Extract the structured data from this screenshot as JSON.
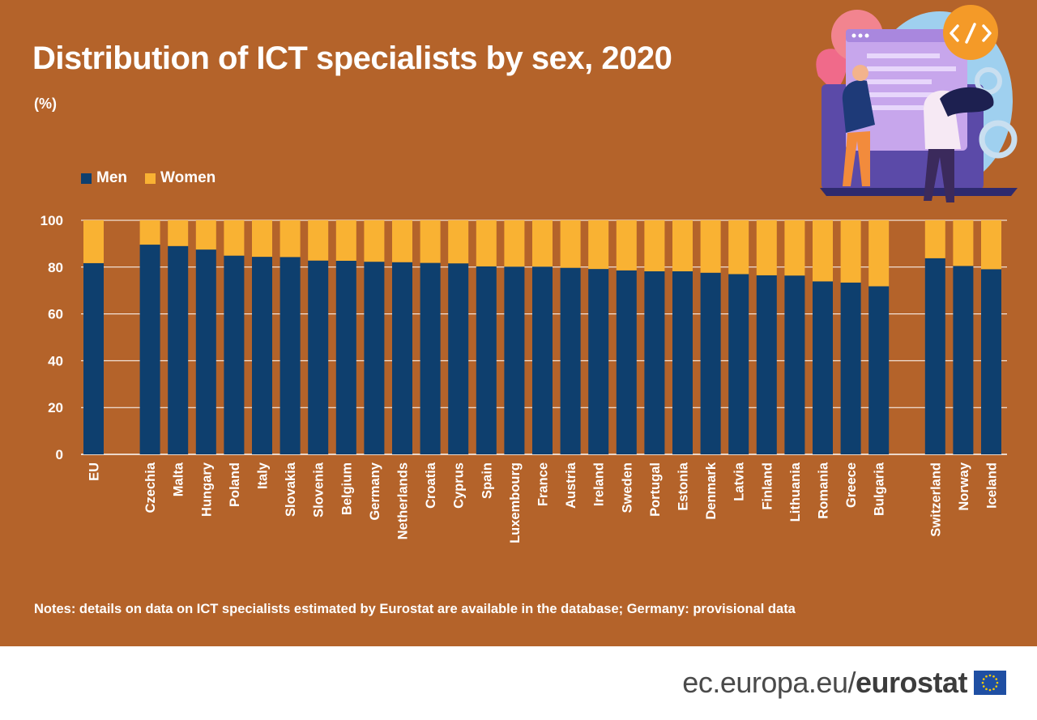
{
  "header": {
    "title": "Distribution of ICT specialists by sex, 2020",
    "subtitle": "(%)"
  },
  "legend": {
    "items": [
      {
        "label": "Men",
        "color": "#0e3f6e"
      },
      {
        "label": "Women",
        "color": "#f9b233"
      }
    ]
  },
  "notes": "Notes: details on data on ICT specialists estimated by Eurostat are available in the database; Germany: provisional data",
  "footer": {
    "url_prefix": "ec.europa.eu/",
    "brand": "eurostat"
  },
  "chart_data": {
    "type": "bar",
    "stacked": true,
    "categories": [
      "EU",
      "Czechia",
      "Malta",
      "Hungary",
      "Poland",
      "Italy",
      "Slovakia",
      "Slovenia",
      "Belgium",
      "Germany",
      "Netherlands",
      "Croatia",
      "Cyprus",
      "Spain",
      "Luxembourg",
      "France",
      "Austria",
      "Ireland",
      "Sweden",
      "Portugal",
      "Estonia",
      "Denmark",
      "Latvia",
      "Finland",
      "Lithuania",
      "Romania",
      "Greece",
      "Bulgaria",
      "Switzerland",
      "Norway",
      "Iceland"
    ],
    "groups": [
      [
        0
      ],
      [
        1,
        27
      ],
      [
        28,
        30
      ]
    ],
    "series": [
      {
        "name": "Men",
        "color": "#0e3f6e",
        "values": [
          81.7,
          89.6,
          89.0,
          87.5,
          84.9,
          84.4,
          84.3,
          82.8,
          82.7,
          82.3,
          82.1,
          81.8,
          81.6,
          80.3,
          80.2,
          80.2,
          79.7,
          79.2,
          78.6,
          78.2,
          78.2,
          77.6,
          77.0,
          76.5,
          76.4,
          73.9,
          73.4,
          71.8,
          83.8,
          80.5,
          79.1
        ]
      },
      {
        "name": "Women",
        "color": "#f9b233",
        "values": [
          18.3,
          10.4,
          11.0,
          12.5,
          15.1,
          15.6,
          15.7,
          17.2,
          17.3,
          17.7,
          17.9,
          18.2,
          18.4,
          19.7,
          19.8,
          19.8,
          20.3,
          20.8,
          21.4,
          21.8,
          21.8,
          22.4,
          23.0,
          23.5,
          23.6,
          26.1,
          26.6,
          28.2,
          16.2,
          19.5,
          20.9
        ]
      }
    ],
    "y_ticks": [
      0,
      20,
      40,
      60,
      80,
      100
    ],
    "ylim": [
      0,
      100
    ],
    "grid": true,
    "legend_position": "top-left"
  }
}
